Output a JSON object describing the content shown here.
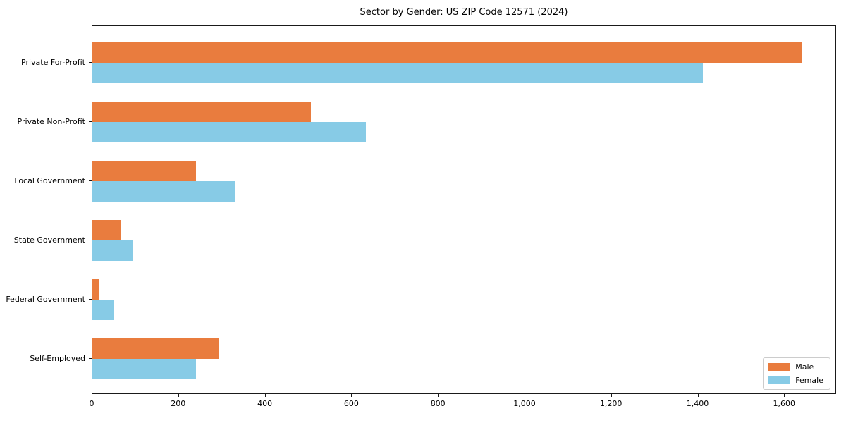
{
  "chart_data": {
    "type": "bar",
    "orientation": "horizontal",
    "title": "Sector by Gender: US ZIP Code 12571 (2024)",
    "xlabel": "",
    "ylabel": "",
    "categories": [
      "Private For-Profit",
      "Private Non-Profit",
      "Local Government",
      "State Government",
      "Federal Government",
      "Self-Employed"
    ],
    "series": [
      {
        "name": "Male",
        "color": "#e97c3e",
        "values": [
          1640,
          505,
          240,
          65,
          16,
          292
        ]
      },
      {
        "name": "Female",
        "color": "#87cbe6",
        "values": [
          1410,
          632,
          330,
          95,
          50,
          240
        ]
      }
    ],
    "xlim": [
      0,
      1720
    ],
    "xticks": [
      0,
      200,
      400,
      600,
      800,
      1000,
      1200,
      1400,
      1600
    ],
    "xtick_labels": [
      "0",
      "200",
      "400",
      "600",
      "800",
      "1,000",
      "1,200",
      "1,400",
      "1,600"
    ],
    "grid": false,
    "legend_position": "lower right"
  }
}
